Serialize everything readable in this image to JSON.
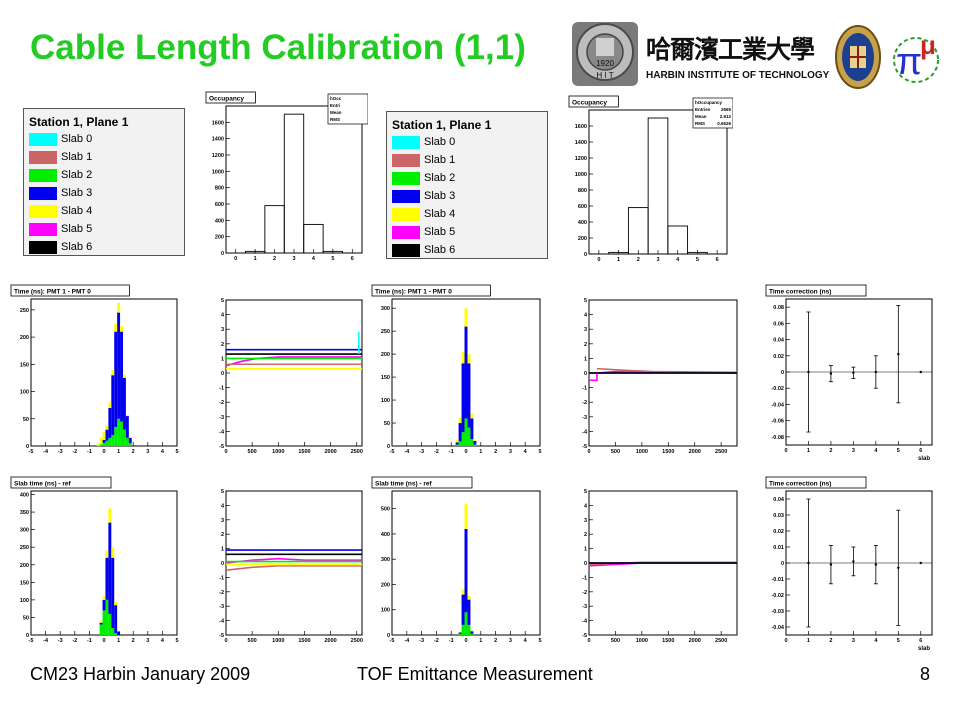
{
  "slide": {
    "title": "Cable Length Calibration (1,1)",
    "footer_left": "CM23 Harbin January 2009",
    "footer_center": "TOF Emittance Measurement",
    "page_number": "8"
  },
  "logos": {
    "hit_seal_year": "1920",
    "hit_seal_letters": "H I T",
    "hit_chinese": "哈爾濱工業大學",
    "hit_english": "HARBIN INSTITUTE OF TECHNOLOGY",
    "mice_symbol": "π",
    "mice_letter": "μ"
  },
  "legends": [
    {
      "title": "Station 1, Plane 1",
      "entries": [
        {
          "label": "Slab 0",
          "color": "#00ffff"
        },
        {
          "label": "Slab 1",
          "color": "#cc6666"
        },
        {
          "label": "Slab 2",
          "color": "#00ee00"
        },
        {
          "label": "Slab 3",
          "color": "#0000ee"
        },
        {
          "label": "Slab 4",
          "color": "#ffff00"
        },
        {
          "label": "Slab 5",
          "color": "#ff00ff"
        },
        {
          "label": "Slab 6",
          "color": "#000000"
        }
      ]
    },
    {
      "title": "Station 1, Plane 1",
      "entries": [
        {
          "label": "Slab 0",
          "color": "#00ffff"
        },
        {
          "label": "Slab 1",
          "color": "#cc6666"
        },
        {
          "label": "Slab 2",
          "color": "#00ee00"
        },
        {
          "label": "Slab 3",
          "color": "#0000ee"
        },
        {
          "label": "Slab 4",
          "color": "#ffff00"
        },
        {
          "label": "Slab 5",
          "color": "#ff00ff"
        },
        {
          "label": "Slab 6",
          "color": "#000000"
        }
      ]
    }
  ],
  "chart_data": [
    {
      "id": "occ-left",
      "type": "bar",
      "title": "Occupancy",
      "stats": [
        {
          "label": "hOcc",
          "value": ""
        },
        {
          "label": "Entri",
          "value": ""
        },
        {
          "label": "Mean",
          "value": ""
        },
        {
          "label": "RMS",
          "value": ""
        }
      ],
      "x": [
        0,
        1,
        2,
        3,
        4,
        5,
        6
      ],
      "values": [
        0,
        20,
        580,
        1700,
        350,
        20,
        0
      ],
      "xlim": [
        -0.5,
        6.5
      ],
      "ylim": [
        0,
        1800
      ],
      "xticks": [
        "0",
        "1",
        "2",
        "3",
        "4",
        "5",
        "6"
      ],
      "yticks": [
        "0",
        "200",
        "400",
        "600",
        "800",
        "1000",
        "1200",
        "1400",
        "1600"
      ]
    },
    {
      "id": "occ-right",
      "type": "bar",
      "title": "Occupancy",
      "stats": [
        {
          "label": "hOccupancy",
          "value": ""
        },
        {
          "label": "Entries",
          "value": "2665"
        },
        {
          "label": "Mean",
          "value": "2.912"
        },
        {
          "label": "RMS",
          "value": "0.6526"
        }
      ],
      "x": [
        0,
        1,
        2,
        3,
        4,
        5,
        6
      ],
      "values": [
        0,
        20,
        580,
        1700,
        350,
        20,
        0
      ],
      "xlim": [
        -0.5,
        6.5
      ],
      "ylim": [
        0,
        1800
      ],
      "xticks": [
        "0",
        "1",
        "2",
        "3",
        "4",
        "5",
        "6"
      ],
      "yticks": [
        "0",
        "200",
        "400",
        "600",
        "800",
        "1000",
        "1200",
        "1400",
        "1600"
      ]
    },
    {
      "id": "tdiff-left",
      "type": "bar",
      "title": "Time (ns): PMT 1 - PMT 0",
      "xlim": [
        -5,
        5
      ],
      "ylim": [
        0,
        270
      ],
      "xticks": [
        "-5",
        "-4",
        "-3",
        "-2",
        "-1",
        "0",
        "1",
        "2",
        "3",
        "4",
        "5"
      ],
      "yticks": [
        "0",
        "50",
        "100",
        "150",
        "200",
        "250"
      ],
      "stacked": true,
      "x": [
        -0.4,
        -0.2,
        0.0,
        0.2,
        0.4,
        0.6,
        0.8,
        1.0,
        1.2,
        1.4,
        1.6,
        1.8,
        2.0
      ],
      "series": [
        {
          "name": "Slab 2",
          "color": "#00ee00",
          "values": [
            0,
            3,
            6,
            10,
            15,
            20,
            35,
            50,
            45,
            30,
            15,
            5,
            0
          ]
        },
        {
          "name": "Slab 3",
          "color": "#0000ee",
          "values": [
            0,
            0,
            5,
            20,
            55,
            110,
            175,
            195,
            165,
            95,
            40,
            10,
            0
          ]
        },
        {
          "name": "Slab 4",
          "color": "#ffff00",
          "values": [
            5,
            12,
            15,
            8,
            10,
            10,
            15,
            18,
            10,
            6,
            2,
            0,
            0
          ]
        }
      ]
    },
    {
      "id": "tdrift-left-top",
      "type": "line",
      "title": "",
      "xlim": [
        0,
        2600
      ],
      "ylim": [
        -5,
        5
      ],
      "xticks": [
        "0",
        "500",
        "1000",
        "1500",
        "2000",
        "2500"
      ],
      "yticks": [
        "-5",
        "-4",
        "-3",
        "-2",
        "-1",
        "0",
        "1",
        "2",
        "3",
        "4",
        "5"
      ],
      "series": [
        {
          "name": "Slab 3",
          "color": "#0000ee",
          "x": [
            0,
            2600
          ],
          "y": [
            1.6,
            1.6
          ]
        },
        {
          "name": "Slab 6",
          "color": "#000000",
          "x": [
            0,
            2600
          ],
          "y": [
            1.3,
            1.3
          ]
        },
        {
          "name": "Slab 5",
          "color": "#ff00ff",
          "x": [
            0,
            300,
            600,
            1000,
            1500,
            2000,
            2600
          ],
          "y": [
            0.5,
            0.8,
            1.0,
            1.1,
            1.1,
            1.1,
            1.1
          ]
        },
        {
          "name": "Slab 1",
          "color": "#cc6666",
          "x": [
            0,
            2600
          ],
          "y": [
            0.6,
            0.6
          ]
        },
        {
          "name": "Slab 4",
          "color": "#ffff00",
          "x": [
            0,
            2600
          ],
          "y": [
            0.3,
            0.3
          ]
        },
        {
          "name": "Slab 2",
          "color": "#00ee00",
          "x": [
            0,
            2600
          ],
          "y": [
            1.0,
            1.0
          ]
        },
        {
          "name": "Slab 0",
          "color": "#00ffff",
          "x": [
            2540,
            2540
          ],
          "y": [
            1.3,
            2.8
          ]
        }
      ]
    },
    {
      "id": "tdiff-right",
      "type": "bar",
      "title": "Time (ns): PMT 1 - PMT 0",
      "xlim": [
        -5,
        5
      ],
      "ylim": [
        0,
        320
      ],
      "xticks": [
        "-5",
        "-4",
        "-3",
        "-2",
        "-1",
        "0",
        "1",
        "2",
        "3",
        "4",
        "5"
      ],
      "yticks": [
        "0",
        "50",
        "100",
        "150",
        "200",
        "250",
        "300"
      ],
      "stacked": true,
      "x": [
        -0.6,
        -0.4,
        -0.2,
        0.0,
        0.2,
        0.4,
        0.6
      ],
      "series": [
        {
          "name": "Slab 2",
          "color": "#00ee00",
          "values": [
            3,
            10,
            30,
            60,
            40,
            15,
            3
          ]
        },
        {
          "name": "Slab 3",
          "color": "#0000ee",
          "values": [
            5,
            40,
            150,
            200,
            140,
            45,
            8
          ]
        },
        {
          "name": "Slab 4",
          "color": "#ffff00",
          "values": [
            5,
            12,
            25,
            40,
            20,
            10,
            2
          ]
        }
      ]
    },
    {
      "id": "tdrift-right-top",
      "type": "line",
      "title": "",
      "xlim": [
        0,
        2800
      ],
      "ylim": [
        -5,
        5
      ],
      "xticks": [
        "0",
        "500",
        "1000",
        "1500",
        "2000",
        "2500"
      ],
      "yticks": [
        "-5",
        "-4",
        "-3",
        "-2",
        "-1",
        "0",
        "1",
        "2",
        "3",
        "4",
        "5"
      ],
      "series": [
        {
          "name": "Slab 5",
          "color": "#ff00ff",
          "x": [
            0,
            150,
            150,
            500,
            2800
          ],
          "y": [
            -0.5,
            -0.5,
            0.0,
            0.1,
            0.0
          ]
        },
        {
          "name": "Slab 1",
          "color": "#cc6666",
          "x": [
            150,
            600,
            1200,
            2800
          ],
          "y": [
            0.3,
            0.2,
            0.1,
            0.05
          ]
        },
        {
          "name": "Slab 3",
          "color": "#0000ee",
          "x": [
            0,
            2800
          ],
          "y": [
            0.0,
            0.0
          ]
        },
        {
          "name": "Slab 6",
          "color": "#000000",
          "x": [
            0,
            2800
          ],
          "y": [
            0.0,
            0.0
          ]
        }
      ]
    },
    {
      "id": "tcorr-top",
      "type": "scatter",
      "title": "Time correction (ns)",
      "xlim": [
        0,
        6.5
      ],
      "ylim": [
        -0.09,
        0.09
      ],
      "xticks": [
        "0",
        "1",
        "2",
        "3",
        "4",
        "5",
        "6"
      ],
      "yticks": [
        "-0.08",
        "-0.06",
        "-0.04",
        "-0.02",
        "0",
        "0.02",
        "0.04",
        "0.06",
        "0.08"
      ],
      "xlabel": "slab",
      "x": [
        1,
        2,
        3,
        4,
        5,
        6
      ],
      "y": [
        0.0,
        -0.002,
        -0.001,
        0.0,
        0.022,
        0.0
      ],
      "yerr": [
        0.074,
        0.01,
        0.007,
        0.02,
        0.06,
        0.0
      ]
    },
    {
      "id": "ref-left",
      "type": "bar",
      "title": "Slab time (ns) - ref",
      "xlim": [
        -5,
        5
      ],
      "ylim": [
        0,
        410
      ],
      "xticks": [
        "-5",
        "-4",
        "-3",
        "-2",
        "-1",
        "0",
        "1",
        "2",
        "3",
        "4",
        "5"
      ],
      "yticks": [
        "0",
        "50",
        "100",
        "150",
        "200",
        "250",
        "300",
        "350",
        "400"
      ],
      "stacked": true,
      "x": [
        -0.2,
        0.0,
        0.2,
        0.4,
        0.6,
        0.8,
        1.0
      ],
      "series": [
        {
          "name": "Slab 2",
          "color": "#00ee00",
          "values": [
            30,
            70,
            100,
            60,
            20,
            5,
            0
          ]
        },
        {
          "name": "Slab 3",
          "color": "#0000ee",
          "values": [
            5,
            30,
            120,
            260,
            200,
            80,
            10
          ]
        },
        {
          "name": "Slab 4",
          "color": "#ffff00",
          "values": [
            5,
            10,
            20,
            40,
            30,
            10,
            2
          ]
        }
      ]
    },
    {
      "id": "tdrift-left-bottom",
      "type": "line",
      "title": "",
      "xlim": [
        0,
        2600
      ],
      "ylim": [
        -5,
        5
      ],
      "xticks": [
        "0",
        "500",
        "1000",
        "1500",
        "2000",
        "2500"
      ],
      "yticks": [
        "-5",
        "-4",
        "-3",
        "-2",
        "-1",
        "0",
        "1",
        "2",
        "3",
        "4",
        "5"
      ],
      "series": [
        {
          "name": "Slab 3",
          "color": "#0000ee",
          "x": [
            0,
            2600
          ],
          "y": [
            0.9,
            0.9
          ]
        },
        {
          "name": "Slab 6",
          "color": "#000000",
          "x": [
            0,
            2600
          ],
          "y": [
            0.6,
            0.6
          ]
        },
        {
          "name": "Slab 5",
          "color": "#ff00ff",
          "x": [
            0,
            500,
            1000,
            1500,
            2000,
            2600
          ],
          "y": [
            0.0,
            0.2,
            0.3,
            0.2,
            0.2,
            0.2
          ]
        },
        {
          "name": "Slab 2",
          "color": "#00ee00",
          "x": [
            0,
            2600
          ],
          "y": [
            0.1,
            0.1
          ]
        },
        {
          "name": "Slab 1",
          "color": "#cc6666",
          "x": [
            0,
            500,
            1000,
            2600
          ],
          "y": [
            -0.5,
            -0.3,
            -0.2,
            -0.2
          ]
        },
        {
          "name": "Slab 4",
          "color": "#ffff00",
          "x": [
            0,
            2600
          ],
          "y": [
            -0.1,
            -0.1
          ]
        }
      ]
    },
    {
      "id": "ref-right",
      "type": "bar",
      "title": "Slab time (ns) - ref",
      "xlim": [
        -5,
        5
      ],
      "ylim": [
        0,
        570
      ],
      "xticks": [
        "-5",
        "-4",
        "-3",
        "-2",
        "-1",
        "0",
        "1",
        "2",
        "3",
        "4",
        "5"
      ],
      "yticks": [
        "0",
        "100",
        "200",
        "300",
        "400",
        "500"
      ],
      "stacked": true,
      "x": [
        -0.4,
        -0.2,
        0.0,
        0.2,
        0.4
      ],
      "series": [
        {
          "name": "Slab 2",
          "color": "#00ee00",
          "values": [
            5,
            40,
            90,
            40,
            5
          ]
        },
        {
          "name": "Slab 3",
          "color": "#0000ee",
          "values": [
            5,
            120,
            330,
            100,
            10
          ]
        },
        {
          "name": "Slab 4",
          "color": "#ffff00",
          "values": [
            2,
            20,
            100,
            15,
            2
          ]
        }
      ]
    },
    {
      "id": "tdrift-right-bottom",
      "type": "line",
      "title": "",
      "xlim": [
        0,
        2800
      ],
      "ylim": [
        -5,
        5
      ],
      "xticks": [
        "0",
        "500",
        "1000",
        "1500",
        "2000",
        "2500"
      ],
      "yticks": [
        "-5",
        "-4",
        "-3",
        "-2",
        "-1",
        "0",
        "1",
        "2",
        "3",
        "4",
        "5"
      ],
      "series": [
        {
          "name": "Slab 5",
          "color": "#ff00ff",
          "x": [
            0,
            500,
            1000,
            2800
          ],
          "y": [
            -0.2,
            -0.1,
            0.0,
            0.0
          ]
        },
        {
          "name": "Slab 1",
          "color": "#cc6666",
          "x": [
            0,
            1000,
            2800
          ],
          "y": [
            -0.1,
            0.05,
            0.05
          ]
        },
        {
          "name": "Slab 3",
          "color": "#0000ee",
          "x": [
            0,
            2800
          ],
          "y": [
            0.0,
            0.0
          ]
        },
        {
          "name": "Slab 6",
          "color": "#000000",
          "x": [
            0,
            2800
          ],
          "y": [
            0.0,
            0.0
          ]
        }
      ]
    },
    {
      "id": "tcorr-bottom",
      "type": "scatter",
      "title": "Time correction (ns)",
      "xlim": [
        0,
        6.5
      ],
      "ylim": [
        -0.045,
        0.045
      ],
      "xticks": [
        "0",
        "1",
        "2",
        "3",
        "4",
        "5",
        "6"
      ],
      "yticks": [
        "-0.04",
        "-0.03",
        "-0.02",
        "-0.01",
        "0",
        "0.01",
        "0.02",
        "0.03",
        "0.04"
      ],
      "xlabel": "slab",
      "x": [
        1,
        2,
        3,
        4,
        5,
        6
      ],
      "y": [
        0.0,
        -0.001,
        0.001,
        -0.001,
        -0.003,
        0.0
      ],
      "yerr": [
        0.04,
        0.012,
        0.009,
        0.012,
        0.036,
        0.0
      ]
    }
  ]
}
